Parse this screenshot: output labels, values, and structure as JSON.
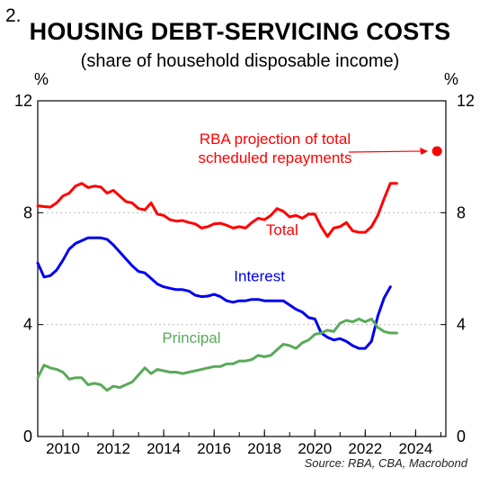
{
  "figure_number": "2.",
  "source": "Source: RBA, CBA, Macrobond",
  "chart_data": {
    "type": "line",
    "title": "HOUSING DEBT-SERVICING COSTS",
    "subtitle": "(share of household disposable income)",
    "y_unit_left": "%",
    "y_unit_right": "%",
    "ylim": [
      0,
      12
    ],
    "yticks": [
      0,
      4,
      8,
      12
    ],
    "xlim": [
      2009,
      2025.2
    ],
    "xticks": [
      2010,
      2012,
      2014,
      2016,
      2018,
      2020,
      2022,
      2024
    ],
    "grid": true,
    "series": [
      {
        "name": "Total",
        "color": "#ff0000",
        "x": [
          2009.0,
          2009.25,
          2009.5,
          2009.75,
          2010.0,
          2010.25,
          2010.5,
          2010.75,
          2011.0,
          2011.25,
          2011.5,
          2011.75,
          2012.0,
          2012.25,
          2012.5,
          2012.75,
          2013.0,
          2013.25,
          2013.5,
          2013.75,
          2014.0,
          2014.25,
          2014.5,
          2014.75,
          2015.0,
          2015.25,
          2015.5,
          2015.75,
          2016.0,
          2016.25,
          2016.5,
          2016.75,
          2017.0,
          2017.25,
          2017.5,
          2017.75,
          2018.0,
          2018.25,
          2018.5,
          2018.75,
          2019.0,
          2019.25,
          2019.5,
          2019.75,
          2020.0,
          2020.25,
          2020.5,
          2020.75,
          2021.0,
          2021.25,
          2021.5,
          2021.75,
          2022.0,
          2022.25,
          2022.5,
          2022.75,
          2023.0,
          2023.25
        ],
        "values": [
          8.25,
          8.22,
          8.2,
          8.35,
          8.6,
          8.7,
          8.95,
          9.05,
          8.9,
          8.95,
          8.92,
          8.7,
          8.8,
          8.6,
          8.4,
          8.35,
          8.15,
          8.1,
          8.35,
          7.95,
          7.9,
          7.75,
          7.7,
          7.72,
          7.65,
          7.6,
          7.45,
          7.5,
          7.6,
          7.62,
          7.55,
          7.45,
          7.5,
          7.45,
          7.65,
          7.8,
          7.75,
          7.9,
          8.15,
          8.05,
          7.85,
          7.9,
          7.8,
          7.95,
          7.95,
          7.5,
          7.15,
          7.45,
          7.5,
          7.65,
          7.35,
          7.3,
          7.3,
          7.5,
          7.9,
          8.5,
          9.05,
          9.05
        ],
        "label": "Total"
      },
      {
        "name": "Interest",
        "color": "#0000ee",
        "x": [
          2009.0,
          2009.25,
          2009.5,
          2009.75,
          2010.0,
          2010.25,
          2010.5,
          2010.75,
          2011.0,
          2011.25,
          2011.5,
          2011.75,
          2012.0,
          2012.25,
          2012.5,
          2012.75,
          2013.0,
          2013.25,
          2013.5,
          2013.75,
          2014.0,
          2014.25,
          2014.5,
          2014.75,
          2015.0,
          2015.25,
          2015.5,
          2015.75,
          2016.0,
          2016.25,
          2016.5,
          2016.75,
          2017.0,
          2017.25,
          2017.5,
          2017.75,
          2018.0,
          2018.25,
          2018.5,
          2018.75,
          2019.0,
          2019.25,
          2019.5,
          2019.75,
          2020.0,
          2020.25,
          2020.5,
          2020.75,
          2021.0,
          2021.25,
          2021.5,
          2021.75,
          2022.0,
          2022.25,
          2022.5,
          2022.75,
          2023.0
        ],
        "values": [
          6.2,
          5.7,
          5.75,
          5.95,
          6.3,
          6.7,
          6.9,
          7.0,
          7.1,
          7.1,
          7.1,
          7.05,
          6.85,
          6.6,
          6.35,
          6.1,
          5.9,
          5.85,
          5.65,
          5.45,
          5.35,
          5.3,
          5.25,
          5.25,
          5.2,
          5.05,
          5.0,
          5.02,
          5.08,
          5.0,
          4.85,
          4.8,
          4.85,
          4.85,
          4.9,
          4.9,
          4.85,
          4.85,
          4.85,
          4.85,
          4.7,
          4.55,
          4.45,
          4.25,
          4.2,
          3.7,
          3.55,
          3.45,
          3.5,
          3.4,
          3.25,
          3.15,
          3.15,
          3.4,
          4.3,
          4.95,
          5.35
        ],
        "label": "Interest"
      },
      {
        "name": "Principal",
        "color": "#5aaa5a",
        "x": [
          2009.0,
          2009.25,
          2009.5,
          2009.75,
          2010.0,
          2010.25,
          2010.5,
          2010.75,
          2011.0,
          2011.25,
          2011.5,
          2011.75,
          2012.0,
          2012.25,
          2012.5,
          2012.75,
          2013.0,
          2013.25,
          2013.5,
          2013.75,
          2014.0,
          2014.25,
          2014.5,
          2014.75,
          2015.0,
          2015.25,
          2015.5,
          2015.75,
          2016.0,
          2016.25,
          2016.5,
          2016.75,
          2017.0,
          2017.25,
          2017.5,
          2017.75,
          2018.0,
          2018.25,
          2018.5,
          2018.75,
          2019.0,
          2019.25,
          2019.5,
          2019.75,
          2020.0,
          2020.25,
          2020.5,
          2020.75,
          2021.0,
          2021.25,
          2021.5,
          2021.75,
          2022.0,
          2022.25,
          2022.5,
          2022.75,
          2023.0,
          2023.25
        ],
        "values": [
          2.1,
          2.55,
          2.45,
          2.4,
          2.3,
          2.05,
          2.1,
          2.1,
          1.85,
          1.9,
          1.85,
          1.65,
          1.8,
          1.75,
          1.85,
          1.95,
          2.2,
          2.45,
          2.25,
          2.4,
          2.35,
          2.3,
          2.3,
          2.25,
          2.3,
          2.35,
          2.4,
          2.45,
          2.5,
          2.5,
          2.6,
          2.6,
          2.7,
          2.7,
          2.75,
          2.9,
          2.85,
          2.9,
          3.1,
          3.3,
          3.25,
          3.15,
          3.35,
          3.45,
          3.65,
          3.7,
          3.8,
          3.75,
          4.05,
          4.15,
          4.1,
          4.2,
          4.1,
          4.2,
          3.9,
          3.75,
          3.7,
          3.7
        ],
        "label": "Principal"
      }
    ],
    "projection": {
      "label_lines": [
        "RBA projection of total",
        "scheduled repayments"
      ],
      "x": 2024.85,
      "value": 10.2,
      "color": "#ff0000"
    }
  }
}
